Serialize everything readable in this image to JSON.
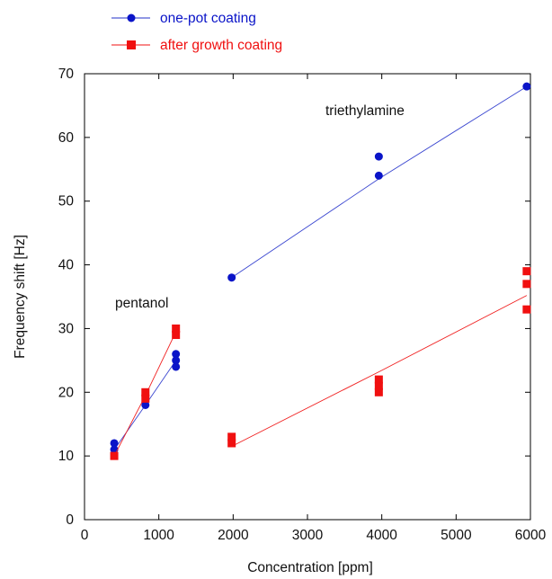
{
  "chart_data": {
    "type": "scatter",
    "xlabel": "Concentration [ppm]",
    "ylabel": "Frequency shift [Hz]",
    "xlim": [
      0,
      6000
    ],
    "ylim": [
      0,
      70
    ],
    "xticks": [
      0,
      1000,
      2000,
      3000,
      4000,
      5000,
      6000
    ],
    "yticks": [
      0,
      10,
      20,
      30,
      40,
      50,
      60,
      70
    ],
    "grid": false,
    "legend_position": "top-left, outside plot",
    "annotations": [
      {
        "text": "triethylamine",
        "x": 4000,
        "y": 64
      },
      {
        "text": "pentanol",
        "x": 800,
        "y": 34
      }
    ],
    "series": [
      {
        "name": "one-pot coating",
        "color": "#0a14c8",
        "marker": "circle",
        "points": [
          [
            400,
            11
          ],
          [
            400,
            12
          ],
          [
            820,
            18
          ],
          [
            1230,
            24
          ],
          [
            1230,
            25
          ],
          [
            1230,
            26
          ],
          [
            1980,
            38
          ],
          [
            3960,
            54
          ],
          [
            3960,
            57
          ],
          [
            5950,
            68
          ]
        ],
        "fits": [
          [
            [
              400,
              11
            ],
            [
              820,
              18
            ],
            [
              1230,
              25
            ]
          ],
          [
            [
              1980,
              38
            ],
            [
              3960,
              53.5
            ],
            [
              5950,
              68
            ]
          ]
        ]
      },
      {
        "name": "after growth coating",
        "color": "#f01010",
        "marker": "square",
        "points": [
          [
            400,
            10
          ],
          [
            820,
            19
          ],
          [
            820,
            20
          ],
          [
            1230,
            29
          ],
          [
            1230,
            30
          ],
          [
            1980,
            12
          ],
          [
            1980,
            13
          ],
          [
            3960,
            20
          ],
          [
            3960,
            21
          ],
          [
            3960,
            22
          ],
          [
            5950,
            33
          ],
          [
            5950,
            37
          ],
          [
            5950,
            39
          ]
        ],
        "fits": [
          [
            [
              400,
              10
            ],
            [
              820,
              19.5
            ],
            [
              1230,
              29.5
            ]
          ],
          [
            [
              1980,
              11.5
            ],
            [
              3960,
              23.2
            ],
            [
              5950,
              35.2
            ]
          ]
        ]
      }
    ]
  }
}
